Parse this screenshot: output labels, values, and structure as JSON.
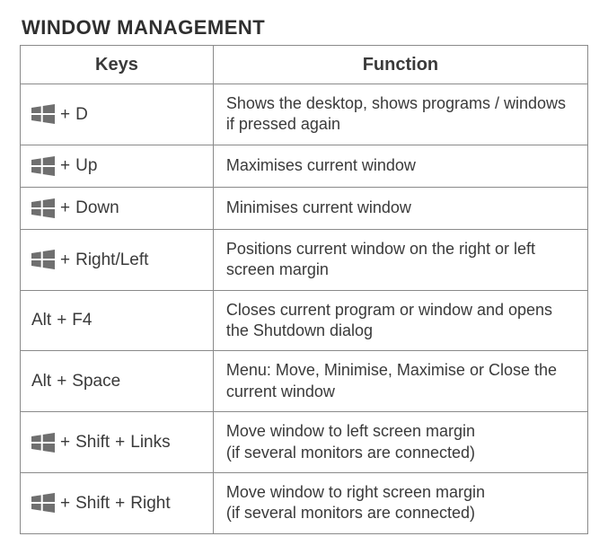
{
  "section": {
    "title": "WINDOW MANAGEMENT",
    "headers": {
      "keys": "Keys",
      "function": "Function"
    },
    "colors": {
      "text": "#3a3a3a",
      "border": "#8a8a8a",
      "winkey_fill": "#6f6f6f",
      "background": "#ffffff"
    },
    "typography": {
      "title_fontsize": 22,
      "title_weight": 700,
      "header_fontsize": 20,
      "header_weight": 700,
      "cell_fontsize": 18,
      "key_fontsize": 19
    },
    "layout": {
      "col_keys_width_pct": 34,
      "col_func_width_pct": 66
    },
    "winkey_icon": {
      "width": 26,
      "height": 22,
      "gap": 2
    },
    "rows": [
      {
        "keys": [
          {
            "type": "winkey"
          },
          {
            "type": "text",
            "value": "D"
          }
        ],
        "function": "Shows the desktop, shows programs / windows if pressed again"
      },
      {
        "keys": [
          {
            "type": "winkey"
          },
          {
            "type": "text",
            "value": "Up"
          }
        ],
        "function": "Maximises current window"
      },
      {
        "keys": [
          {
            "type": "winkey"
          },
          {
            "type": "text",
            "value": "Down"
          }
        ],
        "function": "Minimises current window"
      },
      {
        "keys": [
          {
            "type": "winkey"
          },
          {
            "type": "text",
            "value": "Right/Left"
          }
        ],
        "function": "Positions current window on the right or left screen margin"
      },
      {
        "keys": [
          {
            "type": "text",
            "value": "Alt"
          },
          {
            "type": "text",
            "value": "F4"
          }
        ],
        "function": "Closes current program or window and opens the Shutdown dialog"
      },
      {
        "keys": [
          {
            "type": "text",
            "value": "Alt"
          },
          {
            "type": "text",
            "value": "Space"
          }
        ],
        "function": "Menu: Move, Minimise, Maximise or Close the current window"
      },
      {
        "keys": [
          {
            "type": "winkey"
          },
          {
            "type": "text",
            "value": "Shift"
          },
          {
            "type": "text",
            "value": "Links"
          }
        ],
        "function": "Move window to left screen margin\n(if several monitors are connected)"
      },
      {
        "keys": [
          {
            "type": "winkey"
          },
          {
            "type": "text",
            "value": "Shift"
          },
          {
            "type": "text",
            "value": "Right"
          }
        ],
        "function": "Move window to right screen margin\n(if several monitors are connected)"
      }
    ]
  }
}
